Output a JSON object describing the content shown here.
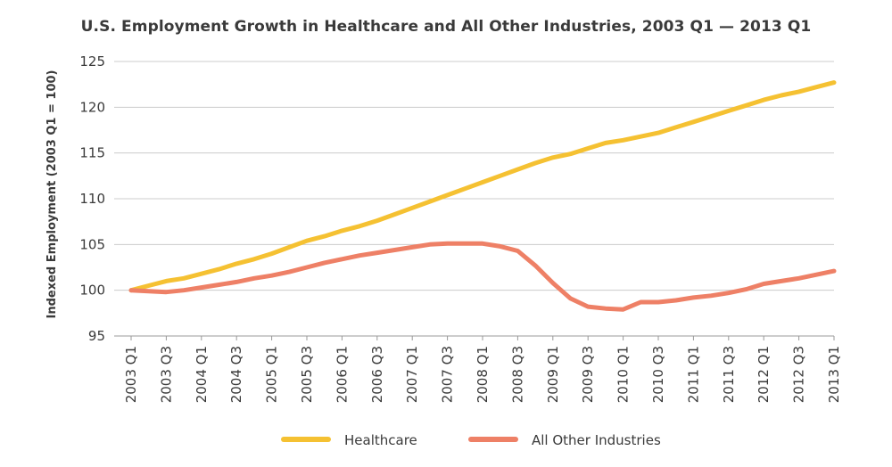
{
  "chart_data": {
    "type": "line",
    "title": "U.S. Employment Growth in Healthcare and All Other Industries, 2003 Q1 — 2013 Q1",
    "xlabel": "",
    "ylabel": "Indexed Employment (2003 Q1 = 100)",
    "ylim": [
      95,
      125
    ],
    "yticks": [
      95,
      100,
      105,
      110,
      115,
      120,
      125
    ],
    "grid": true,
    "legend_position": "bottom",
    "x": [
      "2003 Q1",
      "2003 Q2",
      "2003 Q3",
      "2003 Q4",
      "2004 Q1",
      "2004 Q2",
      "2004 Q3",
      "2004 Q4",
      "2005 Q1",
      "2005 Q2",
      "2005 Q3",
      "2005 Q4",
      "2006 Q1",
      "2006 Q2",
      "2006 Q3",
      "2006 Q4",
      "2007 Q1",
      "2007 Q2",
      "2007 Q3",
      "2007 Q4",
      "2008 Q1",
      "2008 Q2",
      "2008 Q3",
      "2008 Q4",
      "2009 Q1",
      "2009 Q2",
      "2009 Q3",
      "2009 Q4",
      "2010 Q1",
      "2010 Q2",
      "2010 Q3",
      "2010 Q4",
      "2011 Q1",
      "2011 Q2",
      "2011 Q3",
      "2011 Q4",
      "2012 Q1",
      "2012 Q2",
      "2012 Q3",
      "2012 Q4",
      "2013 Q1"
    ],
    "x_tick_labels": [
      "2003 Q1",
      "2003 Q3",
      "2004 Q1",
      "2004 Q3",
      "2005 Q1",
      "2005 Q3",
      "2006 Q1",
      "2006 Q3",
      "2007 Q1",
      "2007 Q3",
      "2008 Q1",
      "2008 Q3",
      "2009 Q1",
      "2009 Q3",
      "2010 Q1",
      "2010 Q3",
      "2011 Q1",
      "2011 Q3",
      "2012 Q1",
      "2012 Q3",
      "2013 Q1"
    ],
    "series": [
      {
        "name": "Healthcare",
        "color": "#F5C132",
        "values": [
          100.0,
          100.5,
          101.0,
          101.3,
          101.8,
          102.3,
          102.9,
          103.4,
          104.0,
          104.7,
          105.4,
          105.9,
          106.5,
          107.0,
          107.6,
          108.3,
          109.0,
          109.7,
          110.4,
          111.1,
          111.8,
          112.5,
          113.2,
          113.9,
          114.5,
          114.9,
          115.5,
          116.1,
          116.4,
          116.8,
          117.2,
          117.8,
          118.4,
          119.0,
          119.6,
          120.2,
          120.8,
          121.3,
          121.7,
          122.2,
          122.7
        ]
      },
      {
        "name": "All Other Industries",
        "color": "#EE8066",
        "values": [
          100.0,
          99.9,
          99.8,
          100.0,
          100.3,
          100.6,
          100.9,
          101.3,
          101.6,
          102.0,
          102.5,
          103.0,
          103.4,
          103.8,
          104.1,
          104.4,
          104.7,
          105.0,
          105.1,
          105.1,
          105.1,
          104.8,
          104.3,
          102.7,
          100.8,
          99.1,
          98.2,
          98.0,
          97.9,
          98.7,
          98.7,
          98.9,
          99.2,
          99.4,
          99.7,
          100.1,
          100.7,
          101.0,
          101.3,
          101.7,
          102.1
        ]
      }
    ]
  }
}
